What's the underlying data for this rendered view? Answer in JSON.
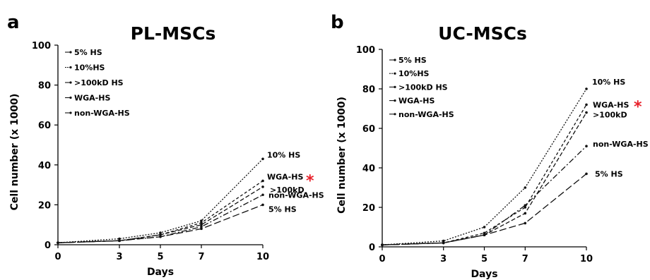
{
  "chart_data": [
    {
      "type": "line",
      "panel_label": "a",
      "title": "PL-MSCs",
      "xlabel": "Days",
      "ylabel": "Cell number (x 1000)",
      "x": [
        0,
        3,
        5,
        7,
        10
      ],
      "xticks": [
        "0",
        "3",
        "5",
        "7",
        "10"
      ],
      "ylim": [
        0,
        100
      ],
      "yticks": [
        "0",
        "20",
        "40",
        "60",
        "80",
        "100"
      ],
      "legend_position": "top-left",
      "star_color": "#e8202a",
      "series": [
        {
          "name": "5% HS",
          "values": [
            1,
            2,
            4,
            8,
            20
          ],
          "end_label": "5% HS",
          "dash": "10,4"
        },
        {
          "name": "10%HS",
          "values": [
            1,
            3,
            6,
            12,
            43
          ],
          "end_label": "10% HS",
          "dash": "2,2"
        },
        {
          "name": ">100kD HS",
          "values": [
            1,
            2,
            5,
            10,
            29
          ],
          "end_label": ">100kD",
          "dash": "6,3"
        },
        {
          "name": "WGA-HS",
          "values": [
            1,
            2,
            5,
            11,
            32
          ],
          "end_label": "WGA-HS",
          "dash": "4,3",
          "star": true
        },
        {
          "name": "non-WGA-HS",
          "values": [
            1,
            2,
            4,
            9,
            25
          ],
          "end_label": "non-WGA-HS",
          "dash": "8,3,2,3"
        }
      ]
    },
    {
      "type": "line",
      "panel_label": "b",
      "title": "UC-MSCs",
      "xlabel": "Days",
      "ylabel": "Cell number (x 1000)",
      "x": [
        0,
        3,
        5,
        7,
        10
      ],
      "xticks": [
        "0",
        "3",
        "5",
        "7",
        "10"
      ],
      "ylim": [
        0,
        100
      ],
      "yticks": [
        "0",
        "20",
        "40",
        "60",
        "80",
        "100"
      ],
      "legend_position": "top-left",
      "star_color": "#e8202a",
      "series": [
        {
          "name": "5% HS",
          "values": [
            1,
            2,
            6,
            12,
            37
          ],
          "end_label": "5% HS",
          "dash": "10,4"
        },
        {
          "name": "10%HS",
          "values": [
            1,
            3,
            10,
            30,
            80
          ],
          "end_label": "10% HS",
          "dash": "2,2"
        },
        {
          "name": ">100kD HS",
          "values": [
            1,
            2,
            6,
            17,
            68
          ],
          "end_label": ">100kD",
          "dash": "6,3"
        },
        {
          "name": "WGA-HS",
          "values": [
            1,
            2,
            7,
            20,
            72
          ],
          "end_label": "WGA-HS",
          "dash": "4,3",
          "star": true
        },
        {
          "name": "non-WGA-HS",
          "values": [
            1,
            2,
            6,
            21,
            51
          ],
          "end_label": "non-WGA-HS",
          "dash": "8,3,2,3"
        }
      ]
    }
  ]
}
